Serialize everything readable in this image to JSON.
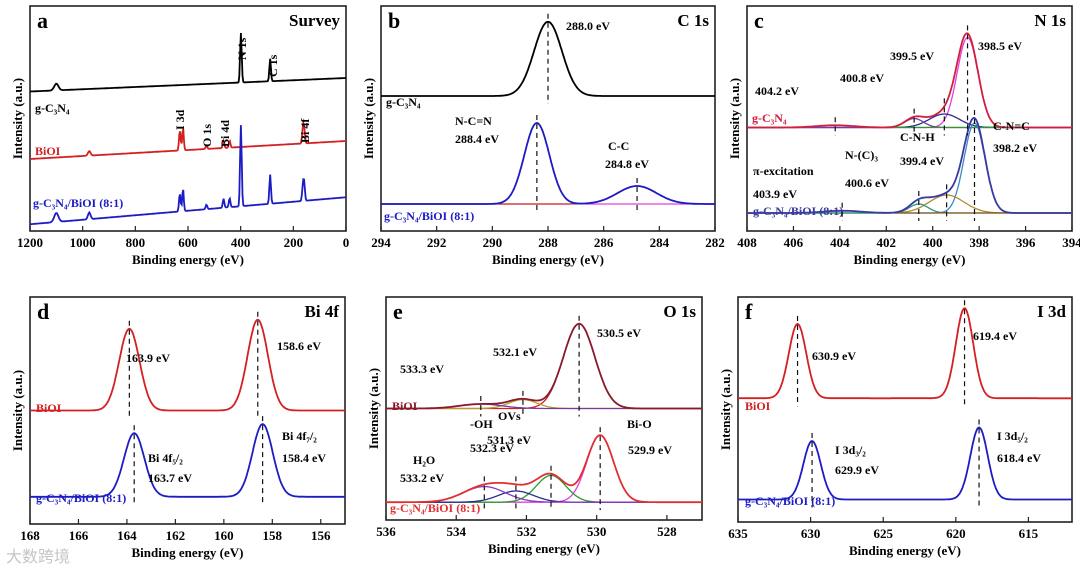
{
  "watermark": "大数跨境",
  "chart_data": [
    {
      "type": "line",
      "letter": "a",
      "title": "Survey",
      "xlabel": "Binding energy (eV)",
      "ylabel": "Intensity (a.u.)",
      "xlim": [
        1200,
        0
      ],
      "xticks": [
        1200,
        1000,
        800,
        600,
        400,
        200,
        0
      ],
      "series": [
        {
          "name": "g-C₃N₄",
          "color": "#000000",
          "offset": 0.68,
          "slope": -0.06,
          "peaks": [
            {
              "center": 399,
              "height": 0.22,
              "width": 3
            },
            {
              "center": 288,
              "height": 0.1,
              "width": 3
            },
            {
              "center": 1100,
              "height": 0.03,
              "width": 8
            }
          ]
        },
        {
          "name": "BiOI",
          "color": "#d42020",
          "offset": 0.4,
          "slope": -0.08,
          "peaks": [
            {
              "center": 631,
              "height": 0.09,
              "width": 3
            },
            {
              "center": 619,
              "height": 0.1,
              "width": 3
            },
            {
              "center": 530,
              "height": 0.015,
              "width": 3
            },
            {
              "center": 465,
              "height": 0.03,
              "width": 3
            },
            {
              "center": 442,
              "height": 0.03,
              "width": 3
            },
            {
              "center": 164,
              "height": 0.06,
              "width": 3
            },
            {
              "center": 159,
              "height": 0.07,
              "width": 3
            },
            {
              "center": 975,
              "height": 0.02,
              "width": 5
            }
          ]
        },
        {
          "name": "g-C₃N₄/BiOI (8:1)",
          "color": "#1c1cc4",
          "offset": 0.15,
          "slope": -0.12,
          "peaks": [
            {
              "center": 631,
              "height": 0.08,
              "width": 3
            },
            {
              "center": 619,
              "height": 0.1,
              "width": 3
            },
            {
              "center": 530,
              "height": 0.02,
              "width": 3
            },
            {
              "center": 465,
              "height": 0.04,
              "width": 3
            },
            {
              "center": 442,
              "height": 0.04,
              "width": 3
            },
            {
              "center": 399,
              "height": 0.36,
              "width": 3
            },
            {
              "center": 288,
              "height": 0.13,
              "width": 3
            },
            {
              "center": 164,
              "height": 0.06,
              "width": 3
            },
            {
              "center": 159,
              "height": 0.08,
              "width": 3
            },
            {
              "center": 1100,
              "height": 0.04,
              "width": 8
            },
            {
              "center": 975,
              "height": 0.03,
              "width": 5
            }
          ]
        }
      ],
      "peak_labels": [
        "N 1s",
        "C 1s",
        "I 3d",
        "O 1s",
        "Bi 4d",
        "Bi 4f"
      ],
      "annotations": []
    },
    {
      "type": "line",
      "letter": "b",
      "title": "C 1s",
      "xlabel": "Binding energy (eV)",
      "ylabel": "Intensity (a.u.)",
      "xlim": [
        294,
        282
      ],
      "xticks": [
        294,
        292,
        290,
        288,
        286,
        284,
        282
      ],
      "series": [
        {
          "name": "g-C₃N₄",
          "color": "#000000",
          "offset": 0.6,
          "slope": 0,
          "peaks": [
            {
              "center": 288.0,
              "height": 0.33,
              "width": 0.5
            }
          ]
        },
        {
          "name": "g-C₃N₄/BiOI (8:1)",
          "color": "#1c1cc4",
          "offset": 0.12,
          "slope": 0,
          "components": [
            {
              "center": 288.4,
              "height": 0.36,
              "width": 0.45,
              "color": "#e040e0"
            },
            {
              "center": 284.8,
              "height": 0.08,
              "width": 0.7,
              "color": "#c02020"
            }
          ]
        }
      ],
      "markers": [
        {
          "x": 288.0,
          "series": 0
        },
        {
          "x": 288.4,
          "series": 1
        },
        {
          "x": 284.8,
          "series": 1
        }
      ],
      "annotations": [
        "288.0 eV",
        "N-C=N",
        "288.4 eV",
        "C-C",
        "284.8 eV"
      ]
    },
    {
      "type": "line",
      "letter": "c",
      "title": "N 1s",
      "xlabel": "Binding energy (eV)",
      "ylabel": "Intensity (a.u.)",
      "xlim": [
        408,
        394
      ],
      "xticks": [
        408,
        406,
        404,
        402,
        400,
        398,
        396,
        394
      ],
      "series": [
        {
          "name": "g-C₃N₄",
          "color": "#d02040",
          "offset": 0.46,
          "slope": 0,
          "components": [
            {
              "center": 398.5,
              "height": 0.4,
              "width": 0.45,
              "color": "#e040e0"
            },
            {
              "center": 399.5,
              "height": 0.06,
              "width": 0.65,
              "color": "#2a2a90"
            },
            {
              "center": 400.8,
              "height": 0.04,
              "width": 0.4,
              "color": "#7a3aa0"
            },
            {
              "center": 404.2,
              "height": 0.01,
              "width": 0.8,
              "color": "#2a9a2a"
            }
          ]
        },
        {
          "name": "g-C₃N₄/BiOI (8:1)",
          "color": "#3a3aa0",
          "offset": 0.08,
          "slope": 0,
          "components": [
            {
              "center": 398.2,
              "height": 0.4,
              "width": 0.45,
              "color": "#3a8ac0"
            },
            {
              "center": 399.4,
              "height": 0.08,
              "width": 0.75,
              "color": "#b08a30"
            },
            {
              "center": 400.6,
              "height": 0.04,
              "width": 0.4,
              "color": "#2a9a7a"
            },
            {
              "center": 403.9,
              "height": 0.01,
              "width": 0.8,
              "color": "#8a5a20"
            }
          ]
        }
      ],
      "markers": [
        {
          "x": 404.2,
          "series": 0
        },
        {
          "x": 400.8,
          "series": 0
        },
        {
          "x": 399.5,
          "series": 0
        },
        {
          "x": 398.5,
          "series": 0
        },
        {
          "x": 403.9,
          "series": 1
        },
        {
          "x": 400.6,
          "series": 1
        },
        {
          "x": 399.4,
          "series": 1
        },
        {
          "x": 398.2,
          "series": 1
        }
      ],
      "annotations": [
        "398.5 eV",
        "399.5 eV",
        "400.8 eV",
        "404.2 eV",
        "C-N=C",
        "398.2 eV",
        "C-N-H",
        "N-(C)₃",
        "399.4 eV",
        "π-excitation",
        "400.6 eV",
        "403.9 eV"
      ]
    },
    {
      "type": "line",
      "letter": "d",
      "title": "Bi 4f",
      "xlabel": "Binding energy (eV)",
      "ylabel": "Intensity (a.u.)",
      "xlim": [
        168,
        155
      ],
      "xticks": [
        168,
        166,
        164,
        162,
        160,
        158,
        156
      ],
      "series": [
        {
          "name": "BiOI",
          "color": "#d42020",
          "offset": 0.5,
          "slope": 0,
          "peaks": [
            {
              "center": 163.9,
              "height": 0.36,
              "width": 0.42
            },
            {
              "center": 158.6,
              "height": 0.4,
              "width": 0.42
            }
          ]
        },
        {
          "name": "g-C₃N₄/BiOI (8:1)",
          "color": "#1c1cc4",
          "offset": 0.12,
          "slope": 0,
          "peaks": [
            {
              "center": 163.7,
              "height": 0.28,
              "width": 0.42
            },
            {
              "center": 158.4,
              "height": 0.32,
              "width": 0.42
            }
          ]
        }
      ],
      "markers": [
        {
          "x": 163.9,
          "series": 0
        },
        {
          "x": 158.6,
          "series": 0
        },
        {
          "x": 163.7,
          "series": 1
        },
        {
          "x": 158.4,
          "series": 1
        }
      ],
      "annotations": [
        "163.9 eV",
        "158.6 eV",
        "Bi 4f₅/₂",
        "163.7 eV",
        "Bi 4f₇/₂",
        "158.4 eV"
      ]
    },
    {
      "type": "line",
      "letter": "e",
      "title": "O 1s",
      "xlabel": "Binding energy (eV)",
      "ylabel": "Intensity (a.u.)",
      "xlim": [
        536,
        527
      ],
      "xticks": [
        536,
        534,
        532,
        530,
        528
      ],
      "series": [
        {
          "name": "BiOI",
          "color": "#8a1a2a",
          "offset": 0.5,
          "slope": 0,
          "components": [
            {
              "center": 530.5,
              "height": 0.38,
              "width": 0.45,
              "color": "#d42020"
            },
            {
              "center": 532.1,
              "height": 0.04,
              "width": 0.4,
              "color": "#b0a030"
            },
            {
              "center": 533.3,
              "height": 0.02,
              "width": 0.6,
              "color": "#7a3aa0"
            }
          ]
        },
        {
          "name": "g-C₃N₄/BiOI (8:1)",
          "color": "#e03030",
          "offset": 0.08,
          "slope": 0,
          "components": [
            {
              "center": 529.9,
              "height": 0.3,
              "width": 0.38,
              "color": "#e040e0"
            },
            {
              "center": 531.3,
              "height": 0.12,
              "width": 0.42,
              "color": "#2a9a2a"
            },
            {
              "center": 532.3,
              "height": 0.05,
              "width": 0.5,
              "color": "#2a2a90"
            },
            {
              "center": 533.2,
              "height": 0.07,
              "width": 0.6,
              "color": "#8a3ac0"
            }
          ]
        }
      ],
      "markers": [
        {
          "x": 530.5,
          "series": 0
        },
        {
          "x": 532.1,
          "series": 0
        },
        {
          "x": 533.3,
          "series": 0
        },
        {
          "x": 529.9,
          "series": 1
        },
        {
          "x": 531.3,
          "series": 1
        },
        {
          "x": 532.3,
          "series": 1
        },
        {
          "x": 533.2,
          "series": 1
        }
      ],
      "annotations": [
        "530.5 eV",
        "532.1 eV",
        "533.3 eV",
        "OVs",
        "531.3 eV",
        "-OH",
        "532.3 eV",
        "H₂O",
        "533.2 eV",
        "Bi-O",
        "529.9 eV"
      ]
    },
    {
      "type": "line",
      "letter": "f",
      "title": "I 3d",
      "xlabel": "Binding energy (eV)",
      "ylabel": "Intensity (a.u.)",
      "xlim": [
        635,
        612
      ],
      "xticks": [
        635,
        630,
        625,
        620,
        615
      ],
      "series": [
        {
          "name": "BiOI",
          "color": "#d42020",
          "offset": 0.55,
          "slope": 0,
          "peaks": [
            {
              "center": 630.9,
              "height": 0.33,
              "width": 0.6
            },
            {
              "center": 619.4,
              "height": 0.4,
              "width": 0.6
            }
          ]
        },
        {
          "name": "g-C₃N₄/BiOI (8:1)",
          "color": "#1c1cc4",
          "offset": 0.1,
          "slope": 0,
          "peaks": [
            {
              "center": 629.9,
              "height": 0.26,
              "width": 0.6
            },
            {
              "center": 618.4,
              "height": 0.32,
              "width": 0.6
            }
          ]
        }
      ],
      "markers": [
        {
          "x": 630.9,
          "series": 0
        },
        {
          "x": 619.4,
          "series": 0
        },
        {
          "x": 629.9,
          "series": 1
        },
        {
          "x": 618.4,
          "series": 1
        }
      ],
      "annotations": [
        "630.9 eV",
        "619.4 eV",
        "I 3d₃/₂",
        "629.9 eV",
        "I 3d₅/₂",
        "618.4 eV"
      ]
    }
  ]
}
